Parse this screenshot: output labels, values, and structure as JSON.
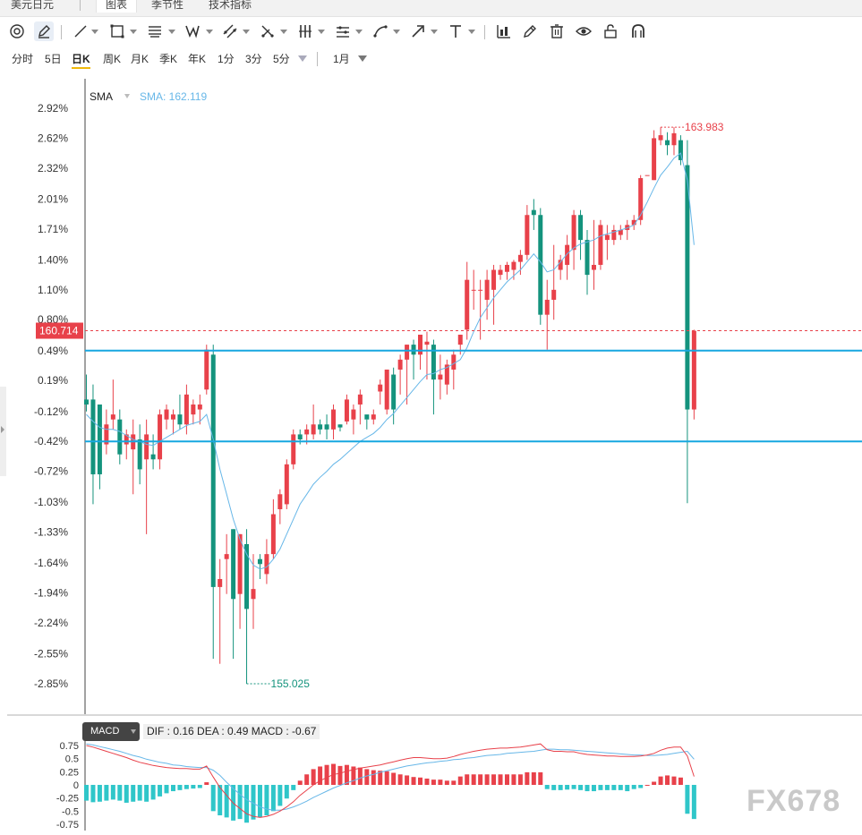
{
  "tabs": [
    {
      "label": "美元日元"
    },
    {
      "label": "图表"
    },
    {
      "label": "季节性"
    },
    {
      "label": "技术指标"
    }
  ],
  "toolbar_icons": [
    "chart-settings-icon",
    "brush-icon",
    "line-tool-icon",
    "rectangle-tool-icon",
    "fibonacci-tool-icon",
    "pattern-tool-icon",
    "trend-channel-icon",
    "measure-tool-icon",
    "vertical-lines-icon",
    "parallel-lines-icon",
    "shape-tool-icon",
    "arrow-tool-icon",
    "text-tool-icon",
    "chart-type-icon",
    "pencil-icon",
    "trash-icon",
    "eye-icon",
    "lock-icon",
    "magnet-icon"
  ],
  "periods": [
    "分时",
    "5日",
    "日K",
    "周K",
    "月K",
    "季K",
    "年K",
    "1分",
    "3分",
    "5分"
  ],
  "active_period": "日K",
  "range_select": "1月",
  "colors": {
    "up": "#e8414a",
    "down": "#14937d",
    "sma": "#67b7e8",
    "hline": "#17a7e0",
    "macd_pos": "#e8414a",
    "macd_neg": "#2fc6c9",
    "dif": "#e8414a",
    "dea": "#67b7e8"
  },
  "indicator": {
    "name": "SMA",
    "value_text": "SMA: 162.119"
  },
  "price_axis": [
    "2.92%",
    "2.62%",
    "2.32%",
    "2.01%",
    "1.71%",
    "1.40%",
    "1.10%",
    "0.80%",
    "0.49%",
    "0.19%",
    "-0.12%",
    "-0.42%",
    "-0.72%",
    "-1.03%",
    "-1.33%",
    "-1.64%",
    "-1.94%",
    "-2.24%",
    "-2.55%",
    "-2.85%"
  ],
  "current_price_label": "160.714",
  "high_label": "163.983",
  "low_label": "155.025",
  "macd": {
    "label": "MACD",
    "values_text": "DIF : 0.16   DEA : 0.49   MACD : -0.67",
    "axis": [
      "0.75",
      "0.5",
      "0.25",
      "0",
      "-0.25",
      "-0.5",
      "-0.75"
    ]
  },
  "watermark": "FX678",
  "chart_data": {
    "type": "candlestick",
    "price_scale": {
      "top_pct": 2.92,
      "bottom_pct": -2.85
    },
    "low": 155.025,
    "high": 163.983,
    "current": 160.714,
    "horizontal_lines_pct": [
      0.49,
      -0.42
    ],
    "candles_pct": [
      [
        0.0,
        0.25,
        -0.12,
        -0.05
      ],
      [
        0.0,
        0.15,
        -1.05,
        -0.75
      ],
      [
        -0.05,
        -0.12,
        -0.9,
        -0.75
      ],
      [
        -0.45,
        -0.1,
        -0.55,
        -0.25
      ],
      [
        -0.2,
        0.2,
        -0.3,
        -0.15
      ],
      [
        -0.2,
        -0.1,
        -0.65,
        -0.55
      ],
      [
        -0.45,
        -0.3,
        -0.6,
        -0.35
      ],
      [
        -0.5,
        -0.2,
        -0.95,
        -0.35
      ],
      [
        -0.4,
        -0.25,
        -0.85,
        -0.7
      ],
      [
        -0.6,
        -0.2,
        -1.35,
        -0.35
      ],
      [
        -0.55,
        -0.35,
        -0.7,
        -0.6
      ],
      [
        -0.6,
        -0.1,
        -0.7,
        -0.15
      ],
      [
        -0.2,
        -0.05,
        -0.3,
        -0.1
      ],
      [
        -0.2,
        -0.1,
        -0.35,
        -0.15
      ],
      [
        -0.15,
        0.05,
        -0.3,
        -0.25
      ],
      [
        -0.25,
        0.15,
        -0.35,
        0.05
      ],
      [
        -0.15,
        0.0,
        -0.25,
        -0.05
      ],
      [
        -0.1,
        0.05,
        -0.25,
        -0.05
      ],
      [
        0.1,
        0.55,
        0.05,
        0.5
      ],
      [
        0.45,
        0.55,
        -2.6,
        -1.88
      ],
      [
        -1.88,
        -1.6,
        -2.65,
        -1.8
      ],
      [
        -1.6,
        -1.35,
        -1.95,
        -1.55
      ],
      [
        -1.3,
        -1.3,
        -2.6,
        -2.0
      ],
      [
        -1.95,
        -1.35,
        -2.3,
        -1.35
      ],
      [
        -1.45,
        -1.3,
        -2.85,
        -2.1
      ],
      [
        -2.0,
        -1.55,
        -2.3,
        -1.9
      ],
      [
        -1.6,
        -1.55,
        -1.8,
        -1.65
      ],
      [
        -1.75,
        -1.4,
        -1.85,
        -1.55
      ],
      [
        -1.55,
        -1.0,
        -1.6,
        -1.15
      ],
      [
        -1.1,
        -0.9,
        -1.25,
        -0.95
      ],
      [
        -1.05,
        -0.6,
        -1.1,
        -0.65
      ],
      [
        -0.65,
        -0.3,
        -0.7,
        -0.35
      ],
      [
        -0.35,
        -0.3,
        -0.45,
        -0.4
      ],
      [
        -0.35,
        -0.25,
        -0.45,
        -0.3
      ],
      [
        -0.35,
        -0.05,
        -0.4,
        -0.25
      ],
      [
        -0.25,
        -0.2,
        -0.35,
        -0.3
      ],
      [
        -0.25,
        -0.15,
        -0.4,
        -0.3
      ],
      [
        -0.3,
        -0.05,
        -0.4,
        -0.1
      ],
      [
        -0.25,
        -0.25,
        -0.32,
        -0.28
      ],
      [
        -0.22,
        0.05,
        -0.25,
        0.0
      ],
      [
        -0.2,
        -0.05,
        -0.35,
        -0.1
      ],
      [
        -0.05,
        0.1,
        -0.25,
        0.05
      ],
      [
        -0.15,
        -0.2,
        -0.3,
        -0.2
      ],
      [
        -0.2,
        -0.1,
        -0.25,
        -0.15
      ],
      [
        0.08,
        0.2,
        -0.05,
        0.15
      ],
      [
        -0.1,
        0.3,
        -0.15,
        0.3
      ],
      [
        0.25,
        0.32,
        -0.25,
        -0.1
      ],
      [
        0.3,
        0.45,
        0.05,
        0.4
      ],
      [
        0.4,
        0.55,
        -0.05,
        0.55
      ],
      [
        0.55,
        0.6,
        0.2,
        0.45
      ],
      [
        0.45,
        0.65,
        0.3,
        0.65
      ],
      [
        0.55,
        0.68,
        0.2,
        0.58
      ],
      [
        0.55,
        0.6,
        -0.15,
        0.2
      ],
      [
        0.2,
        0.45,
        0.0,
        0.25
      ],
      [
        0.15,
        0.4,
        0.05,
        0.35
      ],
      [
        0.3,
        0.5,
        0.1,
        0.45
      ],
      [
        0.55,
        0.65,
        0.45,
        0.65
      ],
      [
        0.7,
        1.38,
        0.6,
        1.2
      ],
      [
        1.1,
        1.3,
        0.9,
        1.1
      ],
      [
        1.1,
        1.2,
        0.6,
        1.1
      ],
      [
        1.0,
        1.3,
        0.8,
        1.2
      ],
      [
        1.1,
        1.35,
        0.75,
        1.3
      ],
      [
        1.25,
        1.35,
        1.2,
        1.3
      ],
      [
        1.28,
        1.38,
        1.2,
        1.35
      ],
      [
        1.3,
        1.4,
        1.2,
        1.38
      ],
      [
        1.38,
        1.5,
        1.25,
        1.45
      ],
      [
        1.45,
        1.95,
        1.4,
        1.85
      ],
      [
        1.9,
        2.01,
        1.7,
        1.85
      ],
      [
        1.85,
        1.92,
        0.75,
        0.85
      ],
      [
        0.85,
        1.2,
        0.5,
        1.0
      ],
      [
        1.0,
        1.55,
        0.8,
        1.1
      ],
      [
        1.3,
        1.45,
        1.2,
        1.4
      ],
      [
        1.35,
        1.65,
        1.2,
        1.55
      ],
      [
        1.5,
        1.9,
        1.3,
        1.85
      ],
      [
        1.85,
        1.9,
        1.4,
        1.6
      ],
      [
        1.6,
        1.7,
        1.05,
        1.25
      ],
      [
        1.3,
        1.8,
        1.1,
        1.35
      ],
      [
        1.35,
        1.8,
        1.3,
        1.75
      ],
      [
        1.6,
        1.75,
        1.4,
        1.65
      ],
      [
        1.6,
        1.75,
        1.55,
        1.7
      ],
      [
        1.65,
        1.75,
        1.6,
        1.7
      ],
      [
        1.7,
        1.8,
        1.6,
        1.75
      ],
      [
        1.75,
        1.85,
        1.7,
        1.8
      ],
      [
        1.8,
        2.25,
        1.75,
        2.22
      ],
      [
        2.25,
        2.2,
        2.2,
        2.25
      ],
      [
        2.2,
        2.7,
        2.2,
        2.62
      ],
      [
        2.6,
        2.73,
        2.55,
        2.65
      ],
      [
        2.6,
        2.68,
        2.45,
        2.55
      ],
      [
        2.55,
        2.73,
        2.45,
        2.67
      ],
      [
        2.6,
        2.65,
        2.35,
        2.4
      ],
      [
        2.35,
        2.6,
        -1.04,
        -0.1
      ],
      [
        -0.1,
        0.7,
        -0.2,
        0.69
      ]
    ],
    "sma_pct": [
      -0.15,
      -0.22,
      -0.28,
      -0.3,
      -0.3,
      -0.32,
      -0.36,
      -0.4,
      -0.42,
      -0.45,
      -0.46,
      -0.42,
      -0.38,
      -0.34,
      -0.3,
      -0.26,
      -0.24,
      -0.22,
      -0.15,
      -0.4,
      -0.7,
      -0.95,
      -1.2,
      -1.4,
      -1.55,
      -1.66,
      -1.7,
      -1.68,
      -1.6,
      -1.5,
      -1.35,
      -1.2,
      -1.05,
      -0.95,
      -0.85,
      -0.78,
      -0.72,
      -0.65,
      -0.6,
      -0.54,
      -0.48,
      -0.42,
      -0.38,
      -0.34,
      -0.28,
      -0.2,
      -0.14,
      -0.06,
      0.02,
      0.1,
      0.18,
      0.25,
      0.26,
      0.3,
      0.32,
      0.36,
      0.4,
      0.52,
      0.68,
      0.82,
      0.92,
      1.02,
      1.1,
      1.18,
      1.24,
      1.3,
      1.38,
      1.46,
      1.38,
      1.28,
      1.3,
      1.38,
      1.46,
      1.52,
      1.56,
      1.58,
      1.6,
      1.64,
      1.66,
      1.68,
      1.7,
      1.72,
      1.75,
      1.85,
      1.98,
      2.12,
      2.25,
      2.33,
      2.42,
      2.47,
      2.2,
      1.55
    ],
    "macd_bars": [
      -0.3,
      -0.33,
      -0.32,
      -0.3,
      -0.28,
      -0.3,
      -0.34,
      -0.32,
      -0.3,
      -0.32,
      -0.28,
      -0.22,
      -0.16,
      -0.12,
      -0.1,
      -0.08,
      -0.07,
      -0.06,
      0.05,
      -0.5,
      -0.58,
      -0.62,
      -0.68,
      -0.65,
      -0.72,
      -0.66,
      -0.62,
      -0.58,
      -0.5,
      -0.4,
      -0.26,
      -0.1,
      0.08,
      0.2,
      0.3,
      0.35,
      0.38,
      0.4,
      0.36,
      0.38,
      0.35,
      0.33,
      0.3,
      0.28,
      0.27,
      0.26,
      0.23,
      0.2,
      0.18,
      0.15,
      0.14,
      0.12,
      0.1,
      0.1,
      0.08,
      0.08,
      0.16,
      0.2,
      0.2,
      0.2,
      0.2,
      0.2,
      0.2,
      0.2,
      0.2,
      0.2,
      0.24,
      0.24,
      0.24,
      -0.08,
      -0.1,
      -0.1,
      -0.09,
      -0.08,
      -0.1,
      -0.12,
      -0.12,
      -0.1,
      -0.1,
      -0.1,
      -0.1,
      -0.12,
      -0.08,
      -0.06,
      0.0,
      0.06,
      0.16,
      0.18,
      0.16,
      0.14,
      -0.55,
      -0.65
    ],
    "dif": [
      0.75,
      0.72,
      0.68,
      0.64,
      0.6,
      0.56,
      0.52,
      0.47,
      0.43,
      0.4,
      0.37,
      0.35,
      0.33,
      0.32,
      0.31,
      0.31,
      0.3,
      0.3,
      0.36,
      0.15,
      -0.05,
      -0.2,
      -0.35,
      -0.45,
      -0.55,
      -0.6,
      -0.62,
      -0.6,
      -0.56,
      -0.5,
      -0.42,
      -0.32,
      -0.2,
      -0.1,
      0.0,
      0.08,
      0.14,
      0.2,
      0.22,
      0.26,
      0.29,
      0.32,
      0.34,
      0.36,
      0.38,
      0.41,
      0.44,
      0.47,
      0.5,
      0.52,
      0.52,
      0.51,
      0.5,
      0.5,
      0.51,
      0.54,
      0.58,
      0.61,
      0.64,
      0.66,
      0.68,
      0.69,
      0.7,
      0.7,
      0.71,
      0.72,
      0.74,
      0.76,
      0.78,
      0.67,
      0.64,
      0.64,
      0.63,
      0.63,
      0.6,
      0.58,
      0.57,
      0.56,
      0.55,
      0.55,
      0.54,
      0.54,
      0.54,
      0.55,
      0.57,
      0.6,
      0.66,
      0.7,
      0.72,
      0.72,
      0.55,
      0.16
    ],
    "dea": [
      0.78,
      0.76,
      0.73,
      0.7,
      0.67,
      0.64,
      0.6,
      0.56,
      0.53,
      0.49,
      0.46,
      0.43,
      0.41,
      0.38,
      0.37,
      0.35,
      0.34,
      0.33,
      0.33,
      0.28,
      0.18,
      0.05,
      -0.07,
      -0.18,
      -0.28,
      -0.35,
      -0.42,
      -0.46,
      -0.48,
      -0.48,
      -0.46,
      -0.42,
      -0.37,
      -0.31,
      -0.24,
      -0.18,
      -0.12,
      -0.06,
      -0.01,
      0.04,
      0.08,
      0.13,
      0.17,
      0.2,
      0.24,
      0.27,
      0.3,
      0.33,
      0.36,
      0.38,
      0.4,
      0.42,
      0.43,
      0.45,
      0.46,
      0.48,
      0.49,
      0.51,
      0.52,
      0.54,
      0.56,
      0.57,
      0.58,
      0.6,
      0.61,
      0.62,
      0.63,
      0.64,
      0.66,
      0.68,
      0.68,
      0.67,
      0.67,
      0.66,
      0.65,
      0.64,
      0.63,
      0.62,
      0.61,
      0.6,
      0.59,
      0.58,
      0.57,
      0.57,
      0.56,
      0.56,
      0.57,
      0.58,
      0.6,
      0.62,
      0.64,
      0.49
    ]
  }
}
